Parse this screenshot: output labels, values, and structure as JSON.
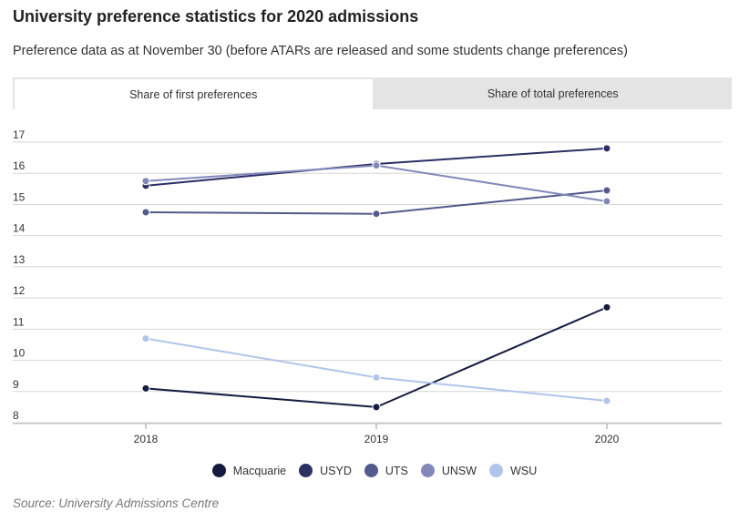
{
  "title": "University preference statistics for 2020 admissions",
  "subtitle": "Preference data as at November 30 (before ATARs are released and some students change preferences)",
  "tabs": [
    {
      "label": "Share of first preferences",
      "active": true
    },
    {
      "label": "Share of total preferences",
      "active": false
    }
  ],
  "source": "Source: University Admissions Centre",
  "chart_data": {
    "type": "line",
    "title": "Share of first preferences",
    "x": [
      "2018",
      "2019",
      "2020"
    ],
    "ylim": [
      8,
      17
    ],
    "yticks": [
      17,
      16,
      15,
      14,
      13,
      12,
      11,
      10,
      9,
      8
    ],
    "grid": true,
    "legend_position": "bottom-center",
    "series": [
      {
        "name": "Macquarie",
        "color": "#141b3f",
        "values": [
          9.1,
          8.5,
          11.7
        ]
      },
      {
        "name": "USYD",
        "color": "#2b2f63",
        "values": [
          15.6,
          16.3,
          16.8
        ]
      },
      {
        "name": "UTS",
        "color": "#535a8c",
        "values": [
          14.75,
          14.7,
          15.45
        ]
      },
      {
        "name": "UNSW",
        "color": "#8289b9",
        "values": [
          15.75,
          16.25,
          15.1
        ]
      },
      {
        "name": "WSU",
        "color": "#b1c4ea",
        "values": [
          10.7,
          9.45,
          8.7
        ]
      }
    ]
  }
}
